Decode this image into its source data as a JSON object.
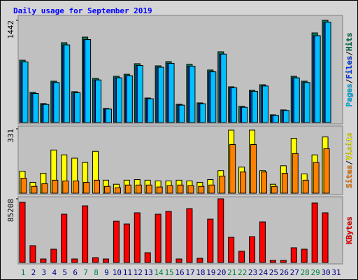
{
  "title": "Daily usage for September 2019",
  "legend_separator": "/",
  "chart_data": [
    {
      "type": "bar",
      "ylim": [
        0,
        1442
      ],
      "yticks": [
        1442
      ],
      "series": [
        {
          "name": "Hits",
          "color": "#00805c",
          "values": [
            879,
            425,
            267,
            583,
            1126,
            435,
            1205,
            622,
            198,
            652,
            681,
            830,
            346,
            800,
            859,
            257,
            820,
            277,
            741,
            998,
            504,
            227,
            454,
            533,
            109,
            178,
            652,
            583,
            1264,
            1442,
            0
          ]
        },
        {
          "name": "Files",
          "color": "#0040ff",
          "values": [
            855,
            410,
            255,
            565,
            1095,
            420,
            1170,
            600,
            190,
            630,
            660,
            805,
            335,
            780,
            835,
            245,
            795,
            265,
            715,
            965,
            490,
            215,
            440,
            515,
            100,
            170,
            630,
            565,
            1225,
            1415,
            0
          ]
        },
        {
          "name": "Pages",
          "color": "#00c0ff",
          "values": [
            855,
            410,
            255,
            565,
            1095,
            420,
            1170,
            600,
            190,
            630,
            660,
            805,
            335,
            780,
            835,
            245,
            795,
            265,
            715,
            965,
            490,
            215,
            440,
            515,
            100,
            170,
            630,
            565,
            1225,
            1415,
            0
          ]
        }
      ]
    },
    {
      "type": "bar",
      "ylim": [
        0,
        331
      ],
      "yticks": [
        331
      ],
      "series": [
        {
          "name": "Visits",
          "color": "#ffff00",
          "values": [
            113,
            56,
            102,
            222,
            197,
            180,
            158,
            215,
            67,
            46,
            67,
            70,
            67,
            63,
            63,
            67,
            63,
            56,
            70,
            116,
            324,
            134,
            324,
            116,
            46,
            141,
            282,
            99,
            197,
            289,
            0
          ]
        },
        {
          "name": "Sites",
          "color": "#ff8000",
          "values": [
            77,
            35,
            49,
            67,
            63,
            63,
            56,
            67,
            35,
            28,
            42,
            42,
            42,
            32,
            39,
            42,
            39,
            35,
            42,
            88,
            250,
            109,
            250,
            109,
            35,
            102,
            204,
            67,
            158,
            229,
            0
          ]
        }
      ]
    },
    {
      "type": "bar",
      "ylim": [
        0,
        85208
      ],
      "yticks": [
        85208
      ],
      "categories": [
        "1",
        "2",
        "3",
        "4",
        "5",
        "6",
        "7",
        "8",
        "9",
        "10",
        "11",
        "12",
        "13",
        "14",
        "15",
        "16",
        "17",
        "18",
        "19",
        "20",
        "21",
        "22",
        "23",
        "24",
        "25",
        "26",
        "27",
        "28",
        "29",
        "30",
        "31"
      ],
      "category_colors": [
        "#008040",
        "#000080",
        "#000080",
        "#000080",
        "#000080",
        "#000080",
        "#008040",
        "#008040",
        "#000080",
        "#000080",
        "#000080",
        "#000080",
        "#000080",
        "#008040",
        "#008040",
        "#000080",
        "#000080",
        "#000080",
        "#000080",
        "#000080",
        "#008040",
        "#008040",
        "#000080",
        "#000080",
        "#000080",
        "#000080",
        "#000080",
        "#008040",
        "#008040",
        "#000080",
        "#000080"
      ],
      "series": [
        {
          "name": "KBytes",
          "color": "#ff0000",
          "values": [
            80500,
            22500,
            4700,
            17800,
            64600,
            4700,
            75800,
            6500,
            4700,
            55200,
            51500,
            66500,
            13100,
            64600,
            68300,
            4700,
            72100,
            5600,
            58000,
            85208,
            33700,
            15000,
            34600,
            54300,
            2800,
            2800,
            19700,
            17800,
            79600,
            66500,
            0
          ]
        }
      ]
    }
  ]
}
